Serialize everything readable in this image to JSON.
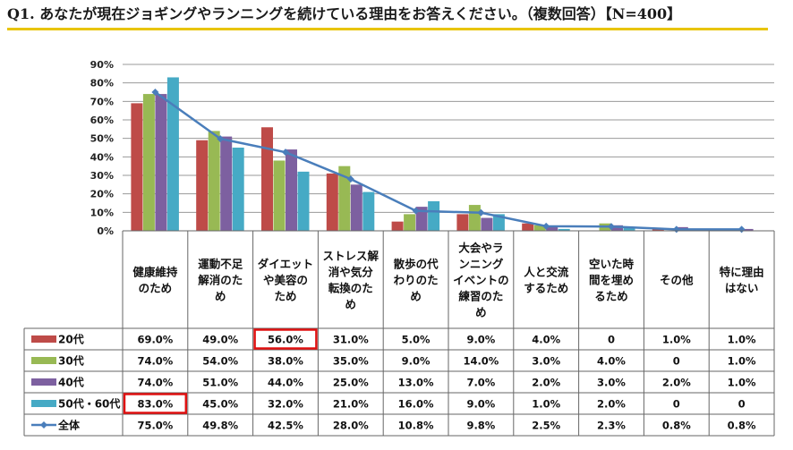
{
  "title": "Q1. あなたが現在ジョギングやランニングを続けている理由をお答えください。（複数回答）【N=400】",
  "chart_data": {
    "type": "bar",
    "yticks": [
      "0%",
      "10%",
      "20%",
      "30%",
      "40%",
      "50%",
      "60%",
      "70%",
      "80%",
      "90%"
    ],
    "ylim": [
      0,
      90
    ],
    "grid": true,
    "categories": [
      [
        "健康維持",
        "のため"
      ],
      [
        "運動不足",
        "解消のた",
        "め"
      ],
      [
        "ダイエット",
        "や美容の",
        "ため"
      ],
      [
        "ストレス解",
        "消や気分",
        "転換のた",
        "め"
      ],
      [
        "散歩の代",
        "わりのた",
        "め"
      ],
      [
        "大会やラ",
        "ンニング",
        "イベントの",
        "練習のた",
        "め"
      ],
      [
        "人と交流",
        "するため"
      ],
      [
        "空いた時",
        "間を埋め",
        "るため"
      ],
      [
        "その他"
      ],
      [
        "特に理由",
        "はない"
      ]
    ],
    "series": [
      {
        "name": "20代",
        "color": "#be4b48",
        "values": [
          69,
          49,
          56,
          31,
          5,
          9,
          4,
          0,
          1,
          1
        ],
        "labels": [
          "69.0%",
          "49.0%",
          "56.0%",
          "31.0%",
          "5.0%",
          "9.0%",
          "4.0%",
          "0",
          "1.0%",
          "1.0%"
        ]
      },
      {
        "name": "30代",
        "color": "#98b954",
        "values": [
          74,
          54,
          38,
          35,
          9,
          14,
          3,
          4,
          0,
          1
        ],
        "labels": [
          "74.0%",
          "54.0%",
          "38.0%",
          "35.0%",
          "9.0%",
          "14.0%",
          "3.0%",
          "4.0%",
          "0",
          "1.0%"
        ]
      },
      {
        "name": "40代",
        "color": "#7d60a0",
        "values": [
          74,
          51,
          44,
          25,
          13,
          7,
          2,
          3,
          2,
          1
        ],
        "labels": [
          "74.0%",
          "51.0%",
          "44.0%",
          "25.0%",
          "13.0%",
          "7.0%",
          "2.0%",
          "3.0%",
          "2.0%",
          "1.0%"
        ]
      },
      {
        "name": "50代・60代",
        "color": "#46aac5",
        "values": [
          83,
          45,
          32,
          21,
          16,
          9,
          1,
          2,
          0,
          0
        ],
        "labels": [
          "83.0%",
          "45.0%",
          "32.0%",
          "21.0%",
          "16.0%",
          "9.0%",
          "1.0%",
          "2.0%",
          "0",
          "0"
        ]
      }
    ],
    "line": {
      "name": "全体",
      "color": "#4a7ebb",
      "values": [
        75,
        49.8,
        42.5,
        28,
        10.8,
        9.8,
        2.5,
        2.3,
        0.8,
        0.8
      ],
      "labels": [
        "75.0%",
        "49.8%",
        "42.5%",
        "28.0%",
        "10.8%",
        "9.8%",
        "2.5%",
        "2.3%",
        "0.8%",
        "0.8%"
      ]
    },
    "highlights": [
      {
        "series": 0,
        "category": 2
      },
      {
        "series": 3,
        "category": 0
      }
    ],
    "highlight_color": "#e01010"
  }
}
